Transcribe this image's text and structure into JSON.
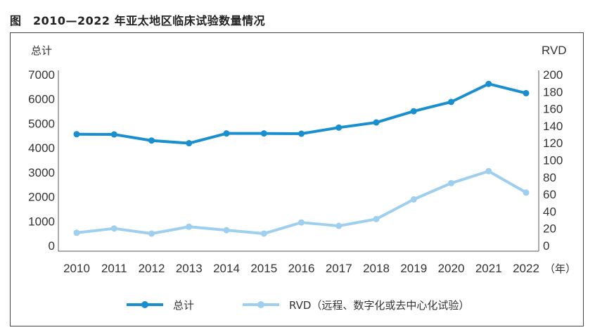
{
  "title": "图　2010—2022 年亚太地区临床试验数量情况",
  "chart_data": {
    "type": "line",
    "title": "2010—2022 年亚太地区临床试验数量情况",
    "x": [
      "2010",
      "2011",
      "2012",
      "2013",
      "2014",
      "2015",
      "2016",
      "2017",
      "2018",
      "2019",
      "2020",
      "2021",
      "2022"
    ],
    "xunit": "（年）",
    "y_left": {
      "label": "总计",
      "ylim": [
        0,
        7000
      ],
      "ticks": [
        0,
        1000,
        2000,
        3000,
        4000,
        5000,
        6000,
        7000
      ]
    },
    "y_right": {
      "label": "RVD",
      "ylim": [
        0,
        200
      ],
      "ticks": [
        0,
        20,
        40,
        60,
        80,
        100,
        120,
        140,
        160,
        180,
        200
      ]
    },
    "series": [
      {
        "name": "总计",
        "axis": "left",
        "color": "#1a8fd0",
        "values": [
          4560,
          4550,
          4300,
          4190,
          4590,
          4590,
          4580,
          4830,
          5040,
          5500,
          5880,
          6620,
          6240
        ]
      },
      {
        "name": "RVD（远程、数字化或去中心化试验）",
        "axis": "right",
        "color": "#9ecfee",
        "values": [
          15,
          20,
          14,
          22,
          18,
          14,
          27,
          23,
          31,
          54,
          73,
          87,
          62
        ]
      }
    ],
    "grid": false,
    "legend": "bottom"
  }
}
